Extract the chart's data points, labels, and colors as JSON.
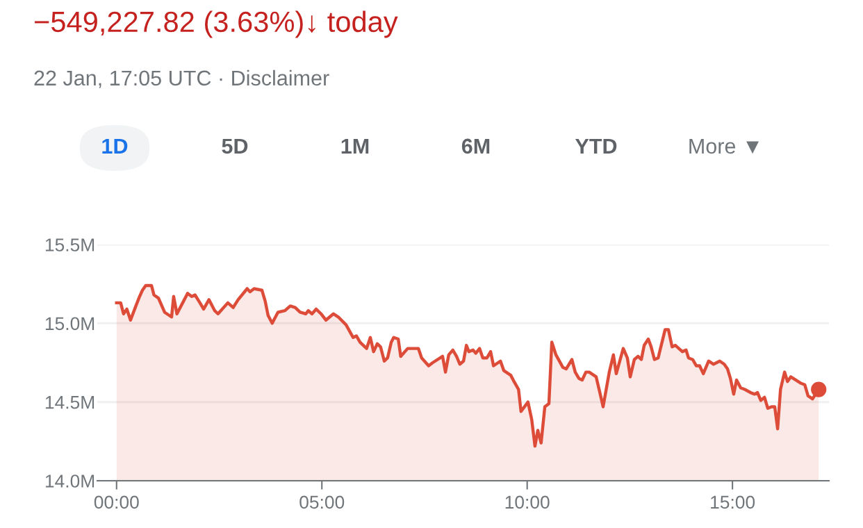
{
  "chart_data": {
    "type": "area",
    "title": "−549,227.82 (3.63%)↓ today",
    "subtitle": "22 Jan, 17:05 UTC · Disclaimer",
    "annotations": [
      "1D",
      "5D",
      "1M",
      "6M",
      "YTD",
      "More ▼"
    ],
    "series": [
      {
        "color": "#dd4b39",
        "x": [
          0.0,
          0.1,
          0.17,
          0.25,
          0.34,
          0.47,
          0.56,
          0.63,
          0.71,
          0.85,
          0.91,
          1.02,
          1.17,
          1.34,
          1.39,
          1.47,
          1.61,
          1.73,
          1.83,
          1.91,
          2.03,
          2.12,
          2.25,
          2.39,
          2.47,
          2.71,
          2.84,
          2.96,
          3.18,
          3.25,
          3.35,
          3.54,
          3.62,
          3.69,
          3.79,
          3.93,
          4.1,
          4.23,
          4.35,
          4.47,
          4.61,
          4.67,
          4.76,
          4.86,
          4.98,
          5.1,
          5.28,
          5.4,
          5.59,
          5.76,
          5.84,
          5.93,
          6.09,
          6.18,
          6.26,
          6.35,
          6.43,
          6.52,
          6.6,
          6.69,
          6.75,
          6.86,
          6.92,
          7.09,
          7.26,
          7.35,
          7.43,
          7.6,
          7.7,
          7.94,
          8.01,
          8.09,
          8.19,
          8.28,
          8.36,
          8.45,
          8.52,
          8.58,
          8.68,
          8.75,
          8.84,
          8.92,
          9.02,
          9.11,
          9.18,
          9.35,
          9.43,
          9.6,
          9.68,
          9.79,
          9.85,
          10.02,
          10.11,
          10.19,
          10.26,
          10.34,
          10.43,
          10.53,
          10.6,
          10.7,
          10.87,
          10.95,
          11.09,
          11.17,
          11.26,
          11.34,
          11.43,
          11.51,
          11.68,
          11.77,
          11.85,
          12.0,
          12.1,
          12.17,
          12.34,
          12.44,
          12.51,
          12.61,
          12.7,
          12.78,
          12.85,
          12.95,
          13.02,
          13.1,
          13.19,
          13.36,
          13.44,
          13.53,
          13.61,
          13.78,
          13.87,
          13.93,
          14.03,
          14.12,
          14.2,
          14.29,
          14.42,
          14.54,
          14.69,
          14.8,
          14.88,
          14.95,
          15.03,
          15.1,
          15.2,
          15.3,
          15.44,
          15.54,
          15.61,
          15.69,
          15.78,
          15.86,
          15.95,
          16.03,
          16.1,
          16.17,
          16.27,
          16.34,
          16.42,
          16.54,
          16.66,
          16.76,
          16.84,
          16.95,
          17.1
        ],
        "values": [
          15.13,
          15.13,
          15.06,
          15.09,
          15.02,
          15.11,
          15.17,
          15.21,
          15.24,
          15.24,
          15.18,
          15.16,
          15.07,
          15.04,
          15.17,
          15.06,
          15.13,
          15.19,
          15.17,
          15.18,
          15.13,
          15.09,
          15.15,
          15.08,
          15.06,
          15.13,
          15.1,
          15.15,
          15.22,
          15.2,
          15.22,
          15.21,
          15.14,
          15.05,
          15.0,
          15.07,
          15.08,
          15.11,
          15.1,
          15.07,
          15.06,
          15.08,
          15.06,
          15.09,
          15.06,
          15.02,
          15.06,
          15.04,
          14.99,
          14.91,
          14.92,
          14.88,
          14.84,
          14.91,
          14.82,
          14.87,
          14.85,
          14.76,
          14.78,
          14.88,
          14.91,
          14.9,
          14.79,
          14.84,
          14.84,
          14.84,
          14.78,
          14.73,
          14.75,
          14.79,
          14.69,
          14.8,
          14.83,
          14.79,
          14.74,
          14.76,
          14.86,
          14.82,
          14.83,
          14.81,
          14.84,
          14.78,
          14.78,
          14.82,
          14.73,
          14.76,
          14.7,
          14.67,
          14.63,
          14.58,
          14.44,
          14.5,
          14.39,
          14.22,
          14.32,
          14.24,
          14.47,
          14.49,
          14.88,
          14.8,
          14.72,
          14.71,
          14.77,
          14.69,
          14.65,
          14.64,
          14.69,
          14.69,
          14.66,
          14.56,
          14.47,
          14.69,
          14.8,
          14.68,
          14.84,
          14.78,
          14.66,
          14.77,
          14.79,
          14.77,
          14.86,
          14.9,
          14.85,
          14.77,
          14.78,
          14.96,
          14.96,
          14.85,
          14.86,
          14.82,
          14.83,
          14.78,
          14.77,
          14.73,
          14.73,
          14.68,
          14.76,
          14.74,
          14.76,
          14.74,
          14.71,
          14.65,
          14.55,
          14.64,
          14.59,
          14.58,
          14.56,
          14.55,
          14.56,
          14.51,
          14.53,
          14.46,
          14.47,
          14.47,
          14.33,
          14.58,
          14.69,
          14.63,
          14.66,
          14.64,
          14.62,
          14.61,
          14.54,
          14.52,
          14.58
        ]
      }
    ],
    "xlim": [
      -0.47,
      17.35
    ],
    "ylim": [
      14.0,
      15.5
    ],
    "xticks": [
      {
        "value": 0,
        "label": "00:00"
      },
      {
        "value": 5,
        "label": "05:00"
      },
      {
        "value": 10,
        "label": "10:00"
      },
      {
        "value": 15,
        "label": "15:00"
      }
    ],
    "yticks": [
      {
        "value": 14.0,
        "label": "14.0M"
      },
      {
        "value": 14.5,
        "label": "14.5M"
      },
      {
        "value": 15.0,
        "label": "15.0M"
      },
      {
        "value": 15.5,
        "label": "15.5M"
      }
    ],
    "grid": "y",
    "line_style": "solid"
  }
}
